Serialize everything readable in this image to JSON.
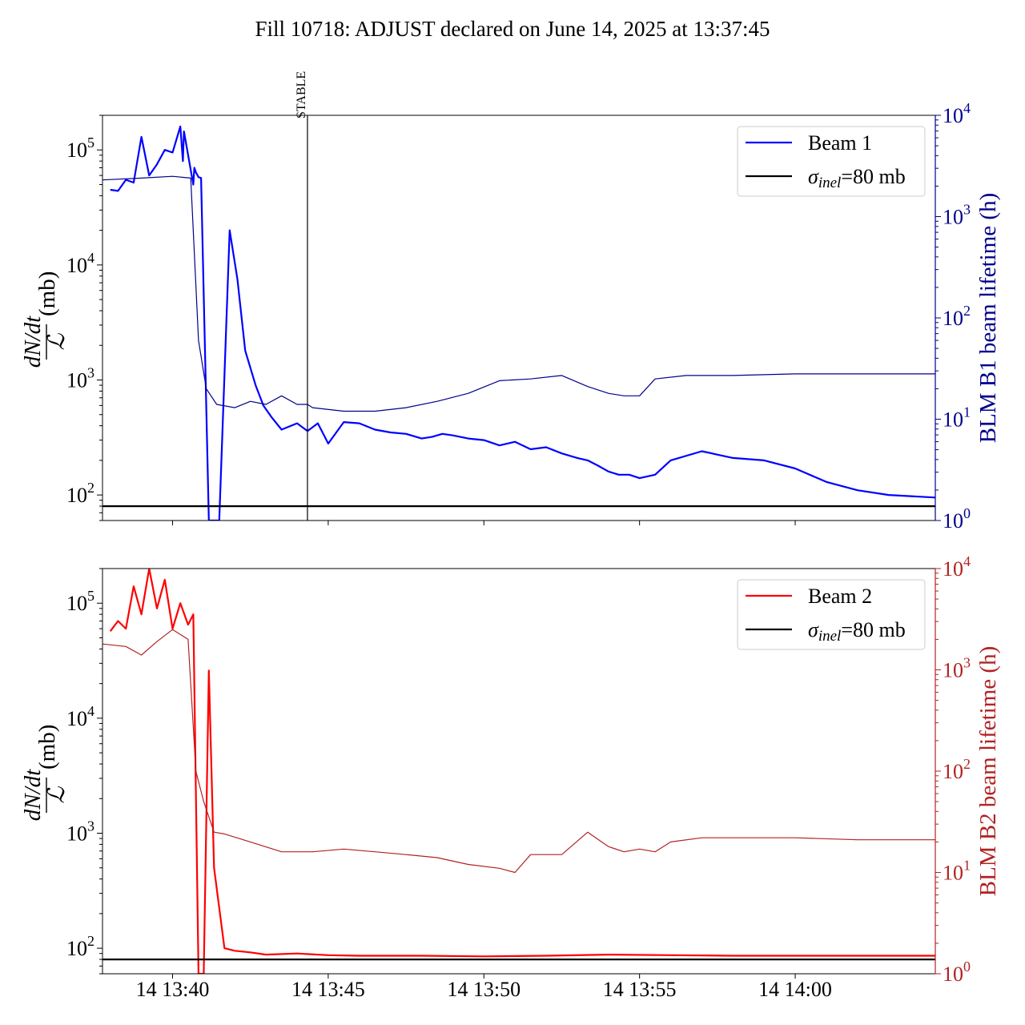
{
  "title": "Fill 10718: ADJUST declared on June 14, 2025 at 13:37:45",
  "colors": {
    "beam1": "#0000ff",
    "beam1_lifetime": "#00008b",
    "beam2": "#ff0000",
    "beam2_lifetime": "#b22222",
    "sigma": "#000000"
  },
  "annotation": {
    "label": "STABLE",
    "time": "13:44:20"
  },
  "x_ticks": [
    "14 13:40",
    "14 13:45",
    "14 13:50",
    "14 13:55",
    "14 14:00"
  ],
  "left_ylabel": {
    "num": "dN/dt",
    "den": "ℒ",
    "unit": "(mb)"
  },
  "left_ticks": [
    {
      "base": "10",
      "exp": "2"
    },
    {
      "base": "10",
      "exp": "3"
    },
    {
      "base": "10",
      "exp": "4"
    },
    {
      "base": "10",
      "exp": "5"
    }
  ],
  "right_ticks": [
    {
      "base": "10",
      "exp": "0"
    },
    {
      "base": "10",
      "exp": "1"
    },
    {
      "base": "10",
      "exp": "2"
    },
    {
      "base": "10",
      "exp": "3"
    },
    {
      "base": "10",
      "exp": "4"
    }
  ],
  "sigma_legend": {
    "symbol": "σ",
    "sub": "inel",
    "text": "=80 mb"
  },
  "chart_data": [
    {
      "type": "line",
      "panel": "top",
      "x_label": "",
      "xlim": [
        "13:37:45",
        "14:04:30"
      ],
      "ylim_left": [
        60,
        200000
      ],
      "ylim_right": [
        1,
        10000
      ],
      "log_y": true,
      "ylabel_right": "BLM B1 beam lifetime (h)",
      "series": [
        {
          "name": "Beam 1",
          "axis": "left",
          "x": [
            "13:38:00",
            "13:38:15",
            "13:38:30",
            "13:38:45",
            "13:39:00",
            "13:39:15",
            "13:39:30",
            "13:39:45",
            "13:40:00",
            "13:40:15",
            "13:40:20",
            "13:40:22",
            "13:40:40",
            "13:40:42",
            "13:40:45",
            "13:40:50",
            "13:40:55",
            "13:41:10",
            "13:41:30",
            "13:41:50",
            "13:42:05",
            "13:42:20",
            "13:42:40",
            "13:42:55",
            "13:43:10",
            "13:43:30",
            "13:44:00",
            "13:44:20",
            "13:44:40",
            "13:45:00",
            "13:45:30",
            "13:46:00",
            "13:46:30",
            "13:47:00",
            "13:47:30",
            "13:48:00",
            "13:48:20",
            "13:48:40",
            "13:49:00",
            "13:49:30",
            "13:50:00",
            "13:50:30",
            "13:51:00",
            "13:51:30",
            "13:52:00",
            "13:52:30",
            "13:53:00",
            "13:53:20",
            "13:53:40",
            "13:54:00",
            "13:54:20",
            "13:54:40",
            "13:55:00",
            "13:55:30",
            "13:56:00",
            "13:57:00",
            "13:58:00",
            "13:59:00",
            "14:00:00",
            "14:01:00",
            "14:02:00",
            "14:03:00",
            "14:04:30"
          ],
          "y": [
            45000,
            44000,
            55000,
            52000,
            130000,
            60000,
            75000,
            100000,
            95000,
            160000,
            80000,
            145000,
            50000,
            70000,
            64000,
            58000,
            57000,
            60,
            60,
            20000,
            7500,
            1800,
            900,
            600,
            480,
            370,
            420,
            360,
            420,
            280,
            430,
            420,
            370,
            350,
            340,
            310,
            320,
            340,
            330,
            310,
            300,
            270,
            290,
            250,
            260,
            230,
            210,
            200,
            180,
            160,
            150,
            150,
            140,
            150,
            200,
            240,
            210,
            200,
            170,
            130,
            110,
            100,
            95
          ]
        },
        {
          "name": "BLM B1 beam lifetime",
          "axis": "right",
          "x": [
            "13:37:45",
            "13:39:00",
            "13:40:00",
            "13:40:35",
            "13:40:50",
            "13:41:05",
            "13:41:25",
            "13:42:00",
            "13:42:30",
            "13:43:00",
            "13:43:30",
            "13:44:00",
            "13:44:20",
            "13:44:30",
            "13:45:30",
            "13:46:30",
            "13:47:30",
            "13:48:30",
            "13:49:30",
            "13:50:30",
            "13:51:30",
            "13:52:30",
            "13:53:20",
            "13:54:00",
            "13:54:30",
            "13:55:00",
            "13:55:30",
            "13:56:30",
            "13:58:00",
            "14:00:00",
            "14:02:00",
            "14:04:30"
          ],
          "y": [
            2300,
            2400,
            2500,
            2400,
            60,
            20,
            14,
            13,
            15,
            14,
            17,
            14,
            14,
            13,
            12,
            12,
            13,
            15,
            18,
            24,
            25,
            27,
            21,
            18,
            17,
            17,
            25,
            27,
            27,
            28,
            28,
            28
          ]
        },
        {
          "name": "σinel=80 mb",
          "axis": "left",
          "x": [
            "13:37:45",
            "14:04:30"
          ],
          "y": [
            80,
            80
          ]
        }
      ]
    },
    {
      "type": "line",
      "panel": "bottom",
      "xlim": [
        "13:37:45",
        "14:04:30"
      ],
      "ylim_left": [
        60,
        200000
      ],
      "ylim_right": [
        1,
        10000
      ],
      "log_y": true,
      "ylabel_right": "BLM B2 beam lifetime (h)",
      "series": [
        {
          "name": "Beam 2",
          "axis": "left",
          "x": [
            "13:38:00",
            "13:38:15",
            "13:38:30",
            "13:38:45",
            "13:39:00",
            "13:39:15",
            "13:39:30",
            "13:39:45",
            "13:40:00",
            "13:40:15",
            "13:40:30",
            "13:40:40",
            "13:40:50",
            "13:41:00",
            "13:41:10",
            "13:41:20",
            "13:41:40",
            "13:42:00",
            "13:42:30",
            "13:43:00",
            "13:44:00",
            "13:45:00",
            "13:46:00",
            "13:48:00",
            "13:50:00",
            "13:52:00",
            "13:54:00",
            "13:56:00",
            "13:58:00",
            "14:00:00",
            "14:02:00",
            "14:04:30"
          ],
          "y": [
            57000,
            70000,
            60000,
            140000,
            80000,
            200000,
            90000,
            160000,
            60000,
            100000,
            65000,
            80000,
            60,
            60,
            26000,
            500,
            100,
            95,
            92,
            88,
            90,
            87,
            86,
            86,
            85,
            86,
            88,
            87,
            86,
            86,
            86,
            86
          ]
        },
        {
          "name": "BLM B2 beam lifetime",
          "axis": "right",
          "x": [
            "13:37:45",
            "13:38:30",
            "13:39:00",
            "13:39:30",
            "13:40:00",
            "13:40:30",
            "13:40:45",
            "13:41:00",
            "13:41:20",
            "13:41:40",
            "13:42:30",
            "13:43:30",
            "13:44:30",
            "13:45:30",
            "13:46:30",
            "13:47:30",
            "13:48:30",
            "13:49:30",
            "13:50:30",
            "13:51:00",
            "13:51:30",
            "13:52:30",
            "13:53:20",
            "13:54:00",
            "13:54:30",
            "13:55:00",
            "13:55:30",
            "13:56:00",
            "13:57:00",
            "13:58:30",
            "14:00:00",
            "14:02:00",
            "14:04:30"
          ],
          "y": [
            1800,
            1700,
            1400,
            1900,
            2500,
            2000,
            100,
            50,
            25,
            24,
            20,
            16,
            16,
            17,
            16,
            15,
            14,
            12,
            11,
            10,
            15,
            15,
            25,
            18,
            16,
            17,
            16,
            20,
            22,
            22,
            22,
            21,
            21
          ]
        },
        {
          "name": "σinel=80 mb",
          "axis": "left",
          "x": [
            "13:37:45",
            "14:04:30"
          ],
          "y": [
            80,
            80
          ]
        }
      ]
    }
  ],
  "legend": {
    "top": [
      "Beam 1",
      "σinel=80 mb"
    ],
    "bottom": [
      "Beam 2",
      "σinel=80 mb"
    ]
  }
}
